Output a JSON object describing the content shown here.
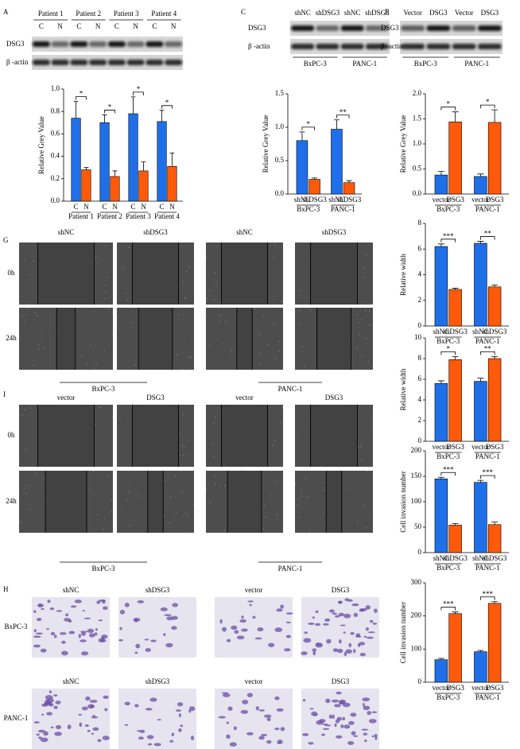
{
  "panels": [
    "A",
    "C",
    "E",
    "G",
    "I",
    "H"
  ],
  "blots": [
    {
      "groups": [
        "Patient 1",
        "Patient 2",
        "Patient 3",
        "Patient 4"
      ],
      "lanes": [
        "C",
        "N",
        "C",
        "N",
        "C",
        "N",
        "C",
        "N"
      ],
      "rows": [
        "DSG3",
        "β -actin"
      ]
    },
    {
      "lanes": [
        "shNC",
        "shDSG3",
        "shNC",
        "shDSG3"
      ],
      "rows": [
        "DSG3",
        "β -actin"
      ],
      "groups": [
        "BxPC-3",
        "PANC-1"
      ]
    },
    {
      "lanes": [
        "Vector",
        "DSG3",
        "Vector",
        "DSG3"
      ],
      "rows": [
        "DSG3",
        "β -actin"
      ],
      "groups": [
        "BxPC-3",
        "PANC-1"
      ]
    }
  ],
  "scratch": [
    {
      "columns": [
        "shNC",
        "shDSG3",
        "shNC",
        "shDSG3"
      ],
      "rows": [
        "0h",
        "24h"
      ],
      "groups": [
        "BxPC-3",
        "PANC-1"
      ]
    },
    {
      "columns": [
        "vector",
        "DSG3",
        "vector",
        "DSG3"
      ],
      "rows": [
        "0h",
        "24h"
      ],
      "groups": [
        "BxPC-3",
        "PANC-1"
      ]
    }
  ],
  "transwell": {
    "rows": [
      {
        "label": "BxPC-3",
        "columns": [
          "shNC",
          "shDSG3",
          "vector",
          "DSG3"
        ]
      },
      {
        "label": "PANC-1",
        "columns": [
          "shNC",
          "shDSG3",
          "vector",
          "DSG3"
        ]
      }
    ]
  },
  "chart_data": [
    {
      "type": "bar",
      "ylabel": "Relative Grey Value",
      "categories": [
        "Patient 1",
        "Patient 2",
        "Patient 3",
        "Patient 4"
      ],
      "series": [
        {
          "name": "C",
          "color": "#1f6fe8",
          "values": [
            0.74,
            0.7,
            0.78,
            0.71
          ],
          "errors": [
            0.15,
            0.07,
            0.15,
            0.1
          ]
        },
        {
          "name": "N",
          "color": "#ff5a0a",
          "values": [
            0.28,
            0.22,
            0.27,
            0.31
          ],
          "errors": [
            0.02,
            0.05,
            0.08,
            0.12
          ]
        }
      ],
      "annotations": [
        "*",
        "*",
        "*",
        "*"
      ],
      "ylim": [
        0,
        1.0
      ],
      "yticks": [
        {
          "value": 0,
          "label": "0.0"
        },
        0.2,
        0.4,
        0.6,
        0.8,
        {
          "value": 1.0,
          "label": "1.0"
        }
      ]
    },
    {
      "type": "bar",
      "ylabel": "Relative Grey Value",
      "categories": [
        "BxPC-3",
        "PANC-1"
      ],
      "series": [
        {
          "name": "shNC",
          "color": "#1f6fe8",
          "values": [
            0.8,
            0.97
          ],
          "errors": [
            0.13,
            0.14
          ]
        },
        {
          "name": "shDSG3",
          "color": "#ff5a0a",
          "values": [
            0.22,
            0.17
          ],
          "errors": [
            0.02,
            0.03
          ]
        }
      ],
      "annotations": [
        "*",
        "**"
      ],
      "ylim": [
        0,
        1.5
      ],
      "yticks": [
        {
          "value": 0,
          "label": "0.0"
        },
        0.5,
        {
          "value": 1.0,
          "label": "1.0"
        },
        1.5
      ]
    },
    {
      "type": "bar",
      "ylabel": "Relative Grey Value",
      "categories": [
        "BxPC-3",
        "PANC-1"
      ],
      "series": [
        {
          "name": "vector",
          "color": "#1f6fe8",
          "values": [
            0.38,
            0.35
          ],
          "errors": [
            0.07,
            0.05
          ]
        },
        {
          "name": "DSG3",
          "color": "#ff5a0a",
          "values": [
            1.44,
            1.43
          ],
          "errors": [
            0.2,
            0.25
          ]
        }
      ],
      "annotations": [
        "*",
        "*"
      ],
      "ylim": [
        0,
        2.0
      ],
      "yticks": [
        {
          "value": 0,
          "label": "0.0"
        },
        0.5,
        {
          "value": 1.0,
          "label": "1.0"
        },
        1.5,
        {
          "value": 2.0,
          "label": "2.0"
        }
      ]
    },
    {
      "type": "bar",
      "ylabel": "Relative width",
      "categories": [
        "BxPC-3",
        "PANC-1"
      ],
      "series": [
        {
          "name": "shNC",
          "color": "#1f6fe8",
          "values": [
            6.2,
            6.45
          ],
          "errors": [
            0.2,
            0.15
          ]
        },
        {
          "name": "shDSG3",
          "color": "#ff5a0a",
          "values": [
            2.85,
            3.05
          ],
          "errors": [
            0.1,
            0.15
          ]
        }
      ],
      "annotations": [
        "***",
        "**"
      ],
      "ylim": [
        0,
        8
      ],
      "yticks": [
        0,
        2,
        4,
        6,
        8
      ]
    },
    {
      "type": "bar",
      "ylabel": "Relative width",
      "categories": [
        "BxPC-3",
        "PANC-1"
      ],
      "series": [
        {
          "name": "vector",
          "color": "#1f6fe8",
          "values": [
            5.6,
            5.8
          ],
          "errors": [
            0.25,
            0.3
          ]
        },
        {
          "name": "DSG3",
          "color": "#ff5a0a",
          "values": [
            7.9,
            8.0
          ],
          "errors": [
            0.3,
            0.2
          ]
        }
      ],
      "annotations": [
        "*",
        "**"
      ],
      "ylim": [
        0,
        10
      ],
      "yticks": [
        0,
        2,
        4,
        6,
        8,
        10
      ]
    },
    {
      "type": "bar",
      "ylabel": "Cell invasion number",
      "categories": [
        "BxPC-3",
        "PANC-1"
      ],
      "series": [
        {
          "name": "shNC",
          "color": "#1f6fe8",
          "values": [
            145,
            138
          ],
          "errors": [
            3,
            4
          ]
        },
        {
          "name": "shDSG3",
          "color": "#ff5a0a",
          "values": [
            54,
            55
          ],
          "errors": [
            3,
            5
          ]
        }
      ],
      "annotations": [
        "***",
        "***"
      ],
      "ylim": [
        0,
        200
      ],
      "yticks": [
        0,
        50,
        100,
        150,
        200
      ]
    },
    {
      "type": "bar",
      "ylabel": "Cell invasion number",
      "categories": [
        "BxPC-3",
        "PANC-1"
      ],
      "series": [
        {
          "name": "vector",
          "color": "#1f6fe8",
          "values": [
            68,
            92
          ],
          "errors": [
            4,
            4
          ]
        },
        {
          "name": "DSG3",
          "color": "#ff5a0a",
          "values": [
            207,
            238
          ],
          "errors": [
            5,
            5
          ]
        }
      ],
      "annotations": [
        "***",
        "***"
      ],
      "ylim": [
        0,
        300
      ],
      "yticks": [
        0,
        100,
        200,
        300
      ]
    }
  ]
}
